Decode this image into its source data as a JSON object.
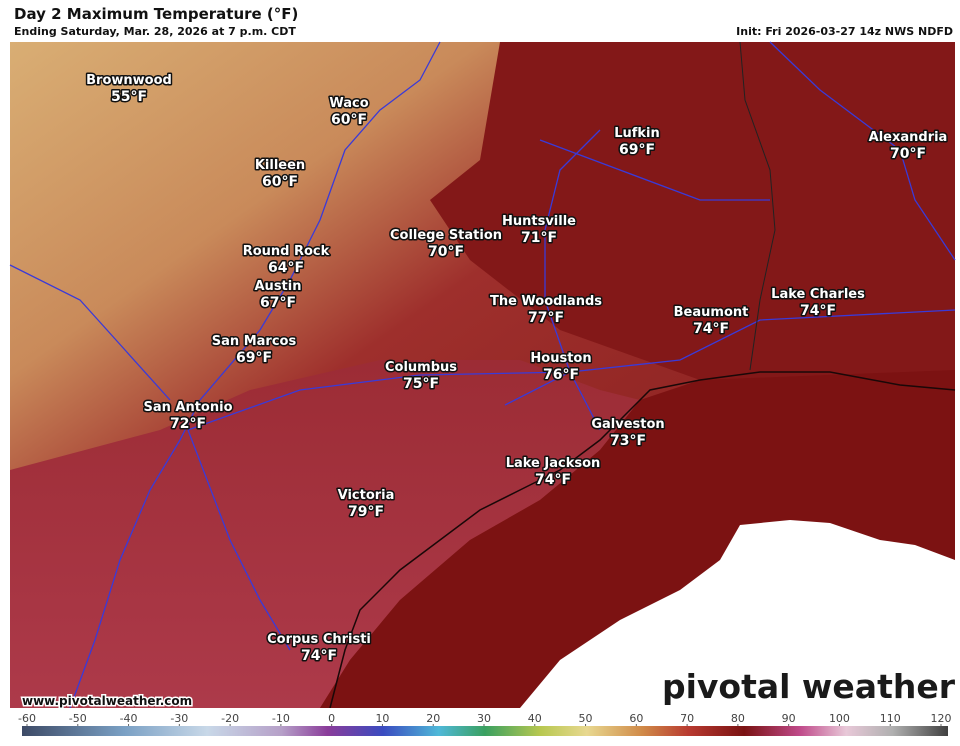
{
  "header": {
    "title": "Day 2 Maximum Temperature (°F)",
    "subtitle": "Ending Saturday, Mar. 28, 2026 at 7 p.m. CDT",
    "init": "Init: Fri 2026-03-27 14z NWS NDFD"
  },
  "cities": [
    {
      "name": "Brownwood",
      "temp": "55°F"
    },
    {
      "name": "Waco",
      "temp": "60°F"
    },
    {
      "name": "Killeen",
      "temp": "60°F"
    },
    {
      "name": "Lufkin",
      "temp": "69°F"
    },
    {
      "name": "Alexandria",
      "temp": "70°F"
    },
    {
      "name": "Huntsville",
      "temp": "71°F"
    },
    {
      "name": "College Station",
      "temp": "70°F"
    },
    {
      "name": "Round Rock",
      "temp": "64°F"
    },
    {
      "name": "Austin",
      "temp": "67°F"
    },
    {
      "name": "The Woodlands",
      "temp": "77°F"
    },
    {
      "name": "Lake Charles",
      "temp": "74°F"
    },
    {
      "name": "Beaumont",
      "temp": "74°F"
    },
    {
      "name": "San Marcos",
      "temp": "69°F"
    },
    {
      "name": "Columbus",
      "temp": "75°F"
    },
    {
      "name": "Houston",
      "temp": "76°F"
    },
    {
      "name": "San Antonio",
      "temp": "72°F"
    },
    {
      "name": "Galveston",
      "temp": "73°F"
    },
    {
      "name": "Lake Jackson",
      "temp": "74°F"
    },
    {
      "name": "Victoria",
      "temp": "79°F"
    },
    {
      "name": "Corpus Christi",
      "temp": "74°F"
    }
  ],
  "colorbar": {
    "ticks": [
      -60,
      -50,
      -40,
      -30,
      -20,
      -10,
      0,
      10,
      20,
      30,
      40,
      50,
      60,
      70,
      80,
      90,
      100,
      110,
      120
    ]
  },
  "footer": {
    "website": "www.pivotalweather.com",
    "logo": "pivotal weather"
  }
}
